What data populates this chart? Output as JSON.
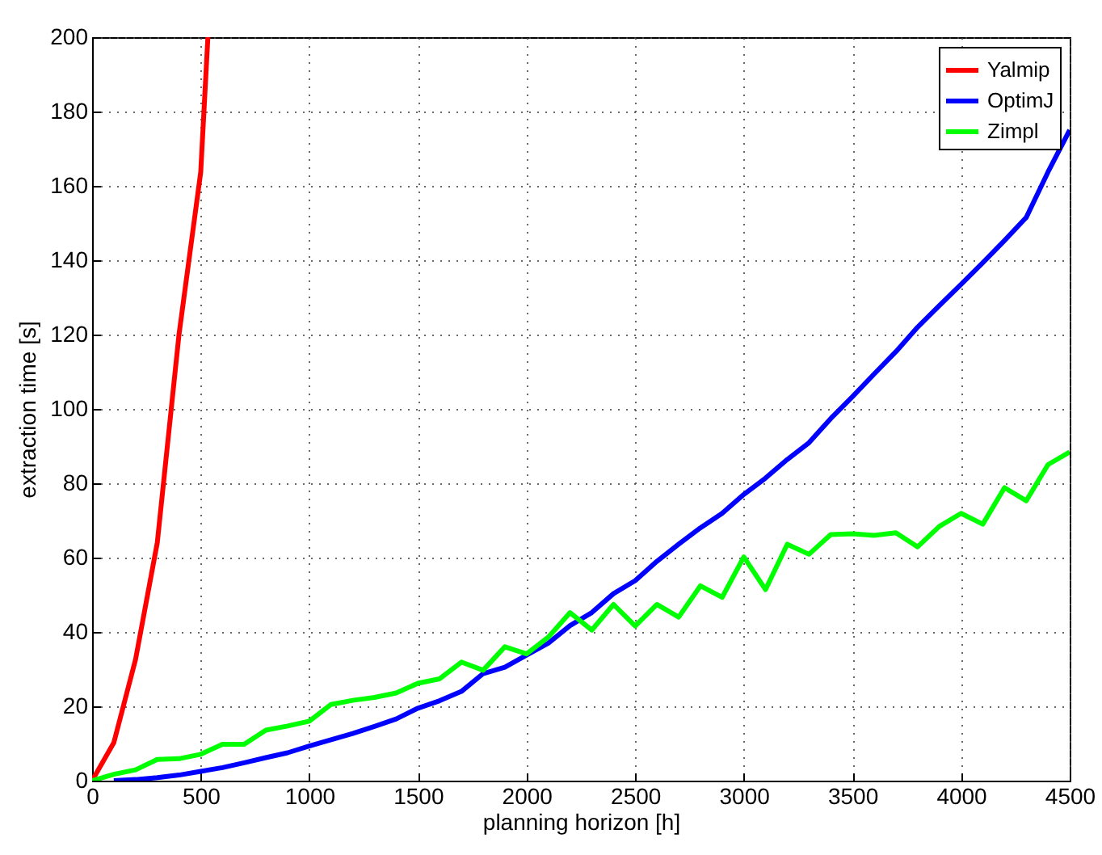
{
  "chart_data": {
    "type": "line",
    "xlabel": "planning horizon [h]",
    "ylabel": "extraction time [s]",
    "xlim": [
      0,
      4500
    ],
    "xticks": [
      0,
      500,
      1000,
      1500,
      2000,
      2500,
      3000,
      3500,
      4000,
      4500
    ],
    "ylim": [
      0,
      200
    ],
    "yticks": [
      0,
      20,
      40,
      60,
      80,
      100,
      120,
      140,
      160,
      180,
      200
    ],
    "grid": true,
    "legend": "top right",
    "marker": "none",
    "line_style": "solid",
    "series": [
      {
        "name": "Yalmip",
        "color": "#ff0000",
        "x": [
          0,
          100,
          200,
          300,
          400,
          500,
          533
        ],
        "values": [
          0,
          10.2,
          32.6,
          64,
          120,
          163.7,
          200
        ]
      },
      {
        "name": "OptimJ",
        "color": "#0000ff",
        "x": [
          100,
          200,
          300,
          400,
          500,
          600,
          700,
          800,
          900,
          1000,
          1100,
          1200,
          1300,
          1400,
          1500,
          1600,
          1700,
          1800,
          1900,
          2000,
          2100,
          2200,
          2300,
          2400,
          2500,
          2600,
          2700,
          2800,
          2900,
          3000,
          3100,
          3200,
          3300,
          3400,
          3500,
          3600,
          3700,
          3800,
          3900,
          4000,
          4100,
          4200,
          4300,
          4400,
          4500
        ],
        "values": [
          0,
          0.3,
          0.8,
          1.5,
          2.5,
          3.5,
          4.8,
          6.2,
          7.5,
          9.3,
          11,
          12.7,
          14.6,
          16.6,
          19.5,
          21.5,
          24,
          28.8,
          30.5,
          33.8,
          37,
          41.7,
          45.2,
          50.3,
          53.8,
          59,
          63.6,
          68,
          71.9,
          77,
          81.4,
          86.4,
          90.9,
          97.4,
          103.3,
          109.4,
          115.4,
          122,
          127.8,
          133.5,
          139.3,
          145.3,
          151.5,
          163.7,
          175
        ]
      },
      {
        "name": "Zimpl",
        "color": "#00ff00",
        "x": [
          0,
          100,
          200,
          300,
          400,
          500,
          600,
          700,
          800,
          900,
          1000,
          1100,
          1200,
          1300,
          1400,
          1500,
          1600,
          1700,
          1800,
          1900,
          2000,
          2100,
          2200,
          2300,
          2400,
          2500,
          2600,
          2700,
          2800,
          2900,
          3000,
          3100,
          3200,
          3300,
          3400,
          3500,
          3600,
          3700,
          3800,
          3900,
          4000,
          4100,
          4200,
          4300,
          4400,
          4500
        ],
        "values": [
          0,
          1.7,
          2.9,
          5.7,
          5.9,
          7.1,
          9.8,
          9.8,
          13.6,
          14.7,
          16,
          20.5,
          21.6,
          22.4,
          23.6,
          26.2,
          27.4,
          31.9,
          29.7,
          36,
          34.1,
          38.6,
          45.2,
          40.5,
          47.4,
          41.6,
          47.4,
          44,
          52.4,
          49.3,
          60.2,
          51.4,
          63.6,
          60.9,
          66.2,
          66.4,
          66,
          66.7,
          62.9,
          68.4,
          71.9,
          69,
          78.8,
          75.3,
          85,
          88.4
        ]
      }
    ]
  }
}
